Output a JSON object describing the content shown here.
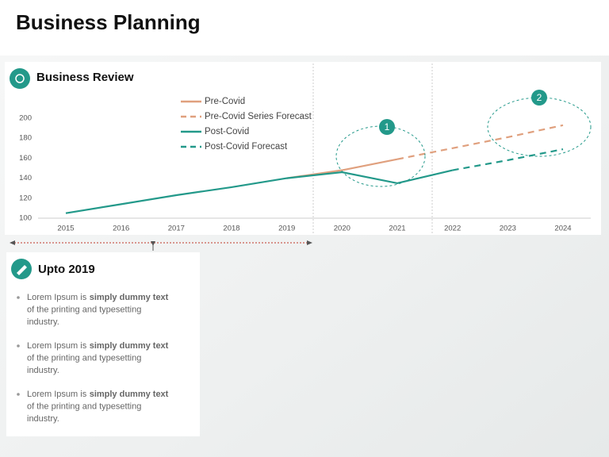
{
  "title": "Business Planning",
  "panel": {
    "title": "Upto 2019",
    "bullets": [
      {
        "lead": "Lorem Ipsum is",
        "bold": "simply dummy text",
        "lines": [
          "of the printing and typesetting",
          "industry."
        ]
      },
      {
        "lead": "Lorem Ipsum is",
        "bold": "simply dummy text",
        "lines": [
          "of the printing and typesetting",
          "industry."
        ]
      },
      {
        "lead": "Lorem Ipsum is",
        "bold": "simply dummy text",
        "lines": [
          "of the printing and typesetting",
          "industry."
        ]
      }
    ]
  },
  "chart_data": {
    "type": "line",
    "title": "Business Review",
    "categories": [
      "2015",
      "2016",
      "2017",
      "2018",
      "2019",
      "2020",
      "2021",
      "2022",
      "2023",
      "2024"
    ],
    "ylim": [
      100,
      210
    ],
    "yticks": [
      100,
      120,
      140,
      160,
      180,
      200
    ],
    "grid": false,
    "series": [
      {
        "name": "Pre-Covid",
        "color": "#e0a07e",
        "dashed": false,
        "values": [
          null,
          null,
          null,
          null,
          140,
          148,
          159,
          null,
          null,
          null
        ]
      },
      {
        "name": "Pre-Covid Series Forecast",
        "color": "#e0a07e",
        "dashed": true,
        "values": [
          null,
          null,
          null,
          null,
          null,
          null,
          159,
          170,
          181,
          193
        ]
      },
      {
        "name": "Post-Covid",
        "color": "#23998a",
        "dashed": false,
        "values": [
          105,
          114,
          123,
          131,
          140,
          146,
          135,
          148,
          null,
          null
        ]
      },
      {
        "name": "Post-Covid Forecast",
        "color": "#23998a",
        "dashed": true,
        "values": [
          null,
          null,
          null,
          null,
          null,
          null,
          null,
          148,
          158,
          169
        ]
      }
    ],
    "annotations": [
      "1",
      "2"
    ]
  }
}
